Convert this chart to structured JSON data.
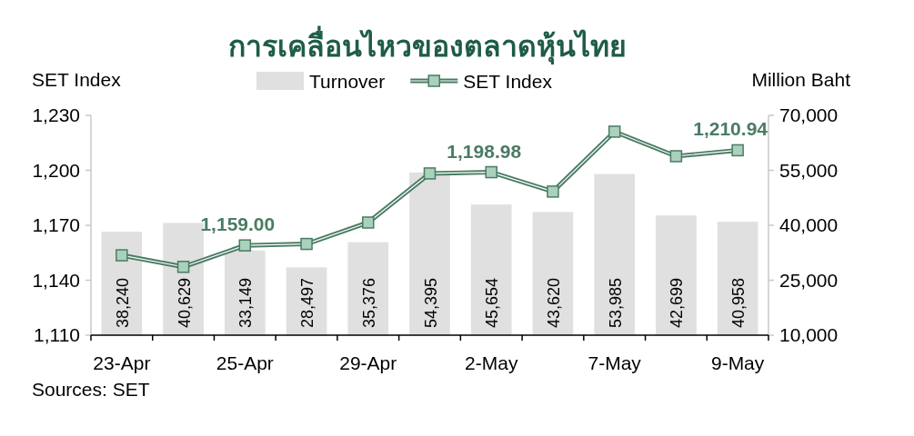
{
  "chart_data": {
    "type": "bar",
    "title": "การเคลื่อนไหวของตลาดหุ้นไทย",
    "ylabel": "SET Index",
    "y2label": "Million Baht",
    "annotations": [
      "Sources: SET"
    ],
    "categories": [
      "23-Apr",
      null,
      "25-Apr",
      null,
      "29-Apr",
      null,
      "2-May",
      null,
      "7-May",
      null,
      "9-May"
    ],
    "ylim": [
      1110,
      1230
    ],
    "yticks": [
      {
        "value": 1110,
        "label": "1,110"
      },
      {
        "value": 1140,
        "label": "1,140"
      },
      {
        "value": 1170,
        "label": "1,170"
      },
      {
        "value": 1200,
        "label": "1,200"
      },
      {
        "value": 1230,
        "label": "1,230"
      }
    ],
    "y2lim": [
      10000,
      70000
    ],
    "y2ticks": [
      {
        "value": 10000,
        "label": "10,000"
      },
      {
        "value": 25000,
        "label": "25,000"
      },
      {
        "value": 40000,
        "label": "40,000"
      },
      {
        "value": 55000,
        "label": "55,000"
      },
      {
        "value": 70000,
        "label": "70,000"
      }
    ],
    "legend": "top",
    "marker": "square",
    "series": [
      {
        "name": "Turnover",
        "axis": "y2",
        "color": "#e0e0e0",
        "values": [
          38240,
          40629,
          33149,
          28497,
          35376,
          54395,
          45654,
          43620,
          53985,
          42699,
          40958
        ],
        "value_labels": [
          "38,240",
          "40,629",
          "33,149",
          "28,497",
          "35,376",
          "54,395",
          "45,654",
          "43,620",
          "53,985",
          "42,699",
          "40,958"
        ]
      },
      {
        "name": "SET Index",
        "type": "line",
        "axis": "y",
        "color": "#4a7c64",
        "values": [
          1153.6,
          1147.3,
          1159.0,
          1159.8,
          1171.5,
          1198.3,
          1198.98,
          1188.4,
          1221.1,
          1207.7,
          1210.94
        ],
        "value_labels": [
          null,
          null,
          "1,159.00",
          null,
          null,
          null,
          "1,198.98",
          null,
          null,
          null,
          "1,210.94"
        ]
      }
    ]
  }
}
